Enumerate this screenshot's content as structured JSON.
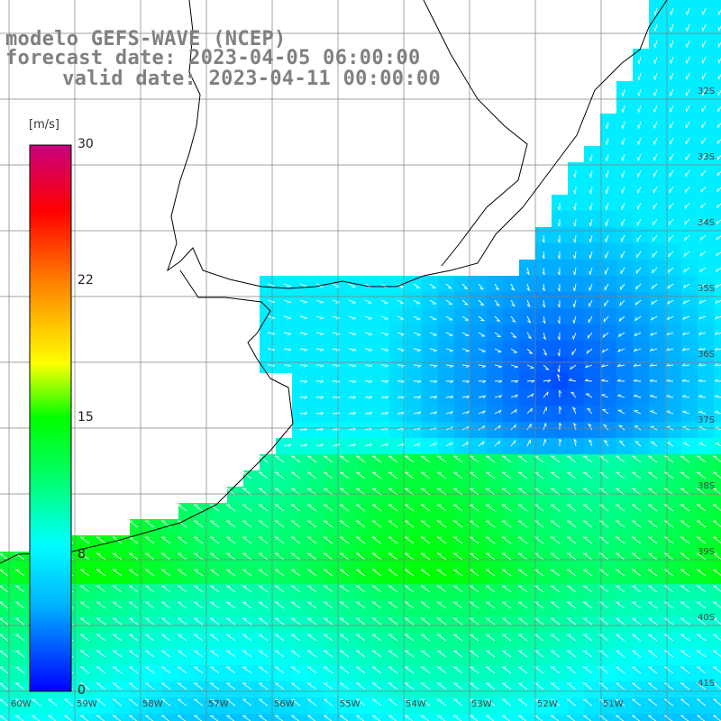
{
  "header": {
    "model": "modelo GEFS-WAVE (NCEP)",
    "forecast": "forecast date: 2023-04-05 06:00:00",
    "valid": "  valid date: 2023-04-11 00:00:00"
  },
  "colorbar": {
    "unit": "[m/s]",
    "ticks": [
      "30",
      "22",
      "15",
      "8",
      "0"
    ],
    "colors": [
      "#0000ff",
      "#00b4ff",
      "#00ffff",
      "#00ff00",
      "#ffff00",
      "#ff8000",
      "#ff0000",
      "#c80080"
    ]
  },
  "axes": {
    "lat_labels": [
      "32S",
      "33S",
      "34S",
      "35S",
      "36S",
      "37S",
      "38S",
      "39S",
      "40S",
      "41S"
    ],
    "lon_labels": [
      "60W",
      "59W",
      "58W",
      "57W",
      "56W",
      "55W",
      "54W",
      "53W",
      "52W",
      "51W"
    ]
  },
  "colors": {
    "land": "#ffffff",
    "coast": "#000000",
    "grid": "#808080",
    "arrow": "#ffffff"
  }
}
